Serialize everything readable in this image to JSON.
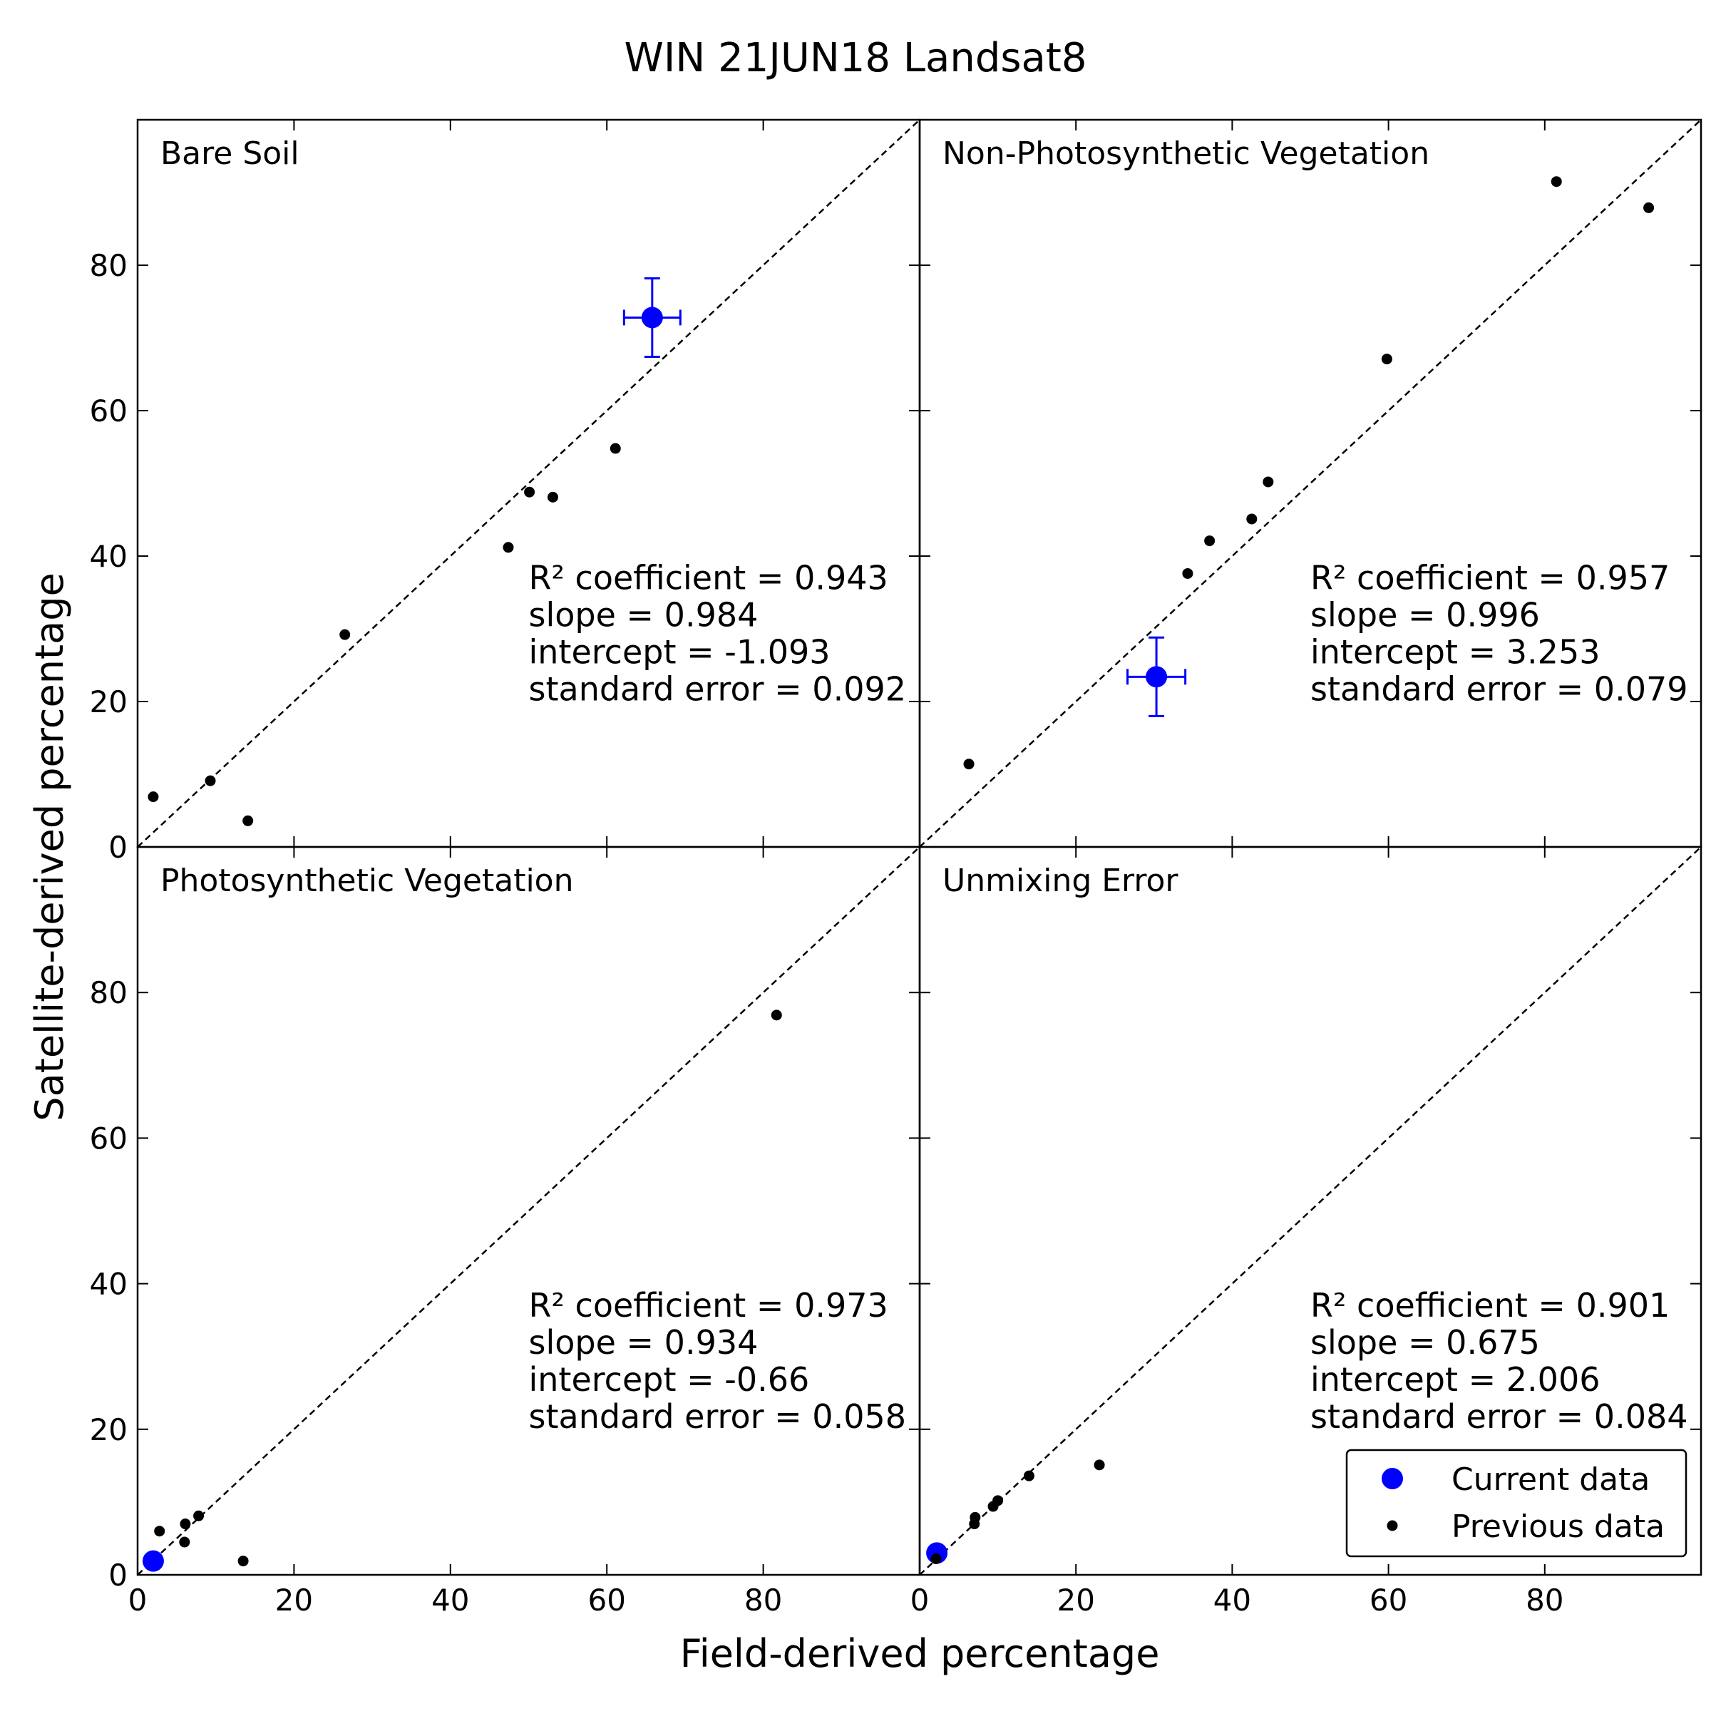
{
  "title": "WIN  21JUN18  Landsat8",
  "x_label": "Field-derived percentage",
  "y_label": "Satellite-derived percentage",
  "chart_data": [
    {
      "type": "scatter",
      "title": "Bare Soil",
      "xlim": [
        0,
        100
      ],
      "ylim": [
        0,
        100
      ],
      "xticks": [
        0,
        20,
        40,
        60,
        80
      ],
      "yticks": [
        0,
        20,
        40,
        60,
        80
      ],
      "x_tick_labels": false,
      "y_tick_labels": true,
      "annotations": [
        "R² coefficient = 0.943",
        "slope = 0.984",
        "intercept = -1.093",
        "standard error = 0.092"
      ],
      "series": [
        {
          "color": "#0000ff",
          "x": [
            65.8
          ],
          "y": [
            72.8
          ],
          "xerr": [
            3.6
          ],
          "yerr": [
            5.4
          ]
        },
        {
          "color": "#000000",
          "x": [
            2.0,
            9.3,
            14.1,
            26.5,
            47.4,
            50.1,
            53.1,
            61.1
          ],
          "y": [
            6.9,
            9.1,
            3.6,
            29.2,
            41.2,
            48.8,
            48.1,
            54.8
          ]
        }
      ]
    },
    {
      "type": "scatter",
      "title": "Non-Photosynthetic Vegetation",
      "xlim": [
        0,
        100
      ],
      "ylim": [
        0,
        100
      ],
      "xticks": [
        0,
        20,
        40,
        60,
        80
      ],
      "yticks": [
        0,
        20,
        40,
        60,
        80
      ],
      "x_tick_labels": false,
      "y_tick_labels": false,
      "annotations": [
        "R² coefficient = 0.957",
        "slope = 0.996",
        "intercept = 3.253",
        "standard error = 0.079"
      ],
      "series": [
        {
          "color": "#0000ff",
          "x": [
            30.3
          ],
          "y": [
            23.4
          ],
          "xerr": [
            3.7
          ],
          "yerr": [
            5.4
          ]
        },
        {
          "color": "#000000",
          "x": [
            6.3,
            34.3,
            37.1,
            42.5,
            44.6,
            59.8,
            81.5,
            93.3
          ],
          "y": [
            11.4,
            37.6,
            42.1,
            45.1,
            50.2,
            67.1,
            91.5,
            87.9
          ]
        }
      ]
    },
    {
      "type": "scatter",
      "title": "Photosynthetic Vegetation",
      "xlim": [
        0,
        100
      ],
      "ylim": [
        0,
        100
      ],
      "xticks": [
        0,
        20,
        40,
        60,
        80
      ],
      "yticks": [
        0,
        20,
        40,
        60,
        80
      ],
      "x_tick_labels": true,
      "y_tick_labels": true,
      "annotations": [
        "R² coefficient = 0.973",
        "slope = 0.934",
        "intercept = -0.66",
        "standard error = 0.058"
      ],
      "series": [
        {
          "color": "#0000ff",
          "x": [
            2.0
          ],
          "y": [
            1.9
          ]
        },
        {
          "color": "#000000",
          "x": [
            2.8,
            6.1,
            7.8,
            6.0,
            13.5,
            81.7
          ],
          "y": [
            6.0,
            7.0,
            8.1,
            4.5,
            1.9,
            76.9
          ]
        }
      ]
    },
    {
      "type": "scatter",
      "title": "Unmixing Error",
      "xlim": [
        0,
        100
      ],
      "ylim": [
        0,
        100
      ],
      "xticks": [
        0,
        20,
        40,
        60,
        80
      ],
      "yticks": [
        0,
        20,
        40,
        60,
        80
      ],
      "x_tick_labels": true,
      "y_tick_labels": false,
      "legend": "lower right",
      "annotations": [
        "R² coefficient = 0.901",
        "slope = 0.675",
        "intercept = 2.006",
        "standard error = 0.084"
      ],
      "series": [
        {
          "name": "Current data",
          "color": "#0000ff",
          "x": [
            2.2
          ],
          "y": [
            3.0
          ]
        },
        {
          "name": "Previous data",
          "color": "#000000",
          "x": [
            2.1,
            7.1,
            7.0,
            9.4,
            10.0,
            14.0,
            23.0
          ],
          "y": [
            2.2,
            7.9,
            7.0,
            9.4,
            10.2,
            13.6,
            15.1
          ]
        }
      ]
    }
  ]
}
